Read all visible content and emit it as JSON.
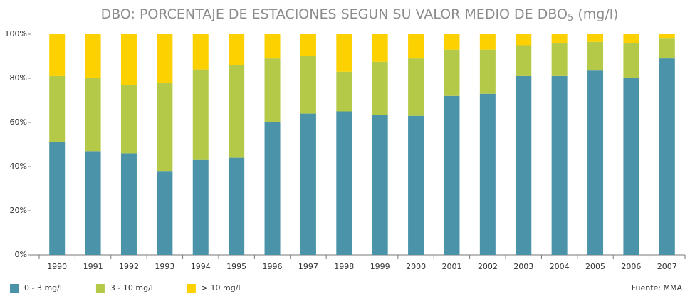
{
  "chart_data": {
    "type": "stacked_bar",
    "title": "DBO: PORCENTAJE DE ESTACIONES SEGUN SU VALOR MEDIO DE DBO",
    "title_subscript": "5",
    "title_suffix": " (mg/l)",
    "source": "Fuente: MMA",
    "categories": [
      "1990",
      "1991",
      "1992",
      "1993",
      "1994",
      "1995",
      "1996",
      "1997",
      "1998",
      "1999",
      "2000",
      "2001",
      "2002",
      "2003",
      "2004",
      "2005",
      "2006",
      "2007"
    ],
    "series": [
      {
        "name": "0 - 3 mg/l",
        "color": "#4a93a8",
        "values": [
          51,
          47,
          46,
          38,
          43,
          44,
          60,
          64,
          65,
          63.5,
          63,
          72,
          73,
          81,
          81,
          83.5,
          80,
          89
        ]
      },
      {
        "name": "3 - 10 mg/l",
        "color": "#b5c948",
        "values": [
          30,
          33,
          31,
          40,
          41,
          42,
          29,
          26,
          18,
          24,
          26,
          21,
          20,
          14,
          15,
          13,
          16,
          9
        ]
      },
      {
        "name": "> 10 mg/l",
        "color": "#fdd100",
        "values": [
          19,
          20,
          23,
          22,
          16,
          14,
          11,
          10,
          17,
          12.5,
          11,
          7,
          7,
          5,
          4,
          3.5,
          4,
          2
        ]
      }
    ],
    "ylim": [
      0,
      100
    ],
    "yticks": [
      {
        "value": 0,
        "label": "0%"
      },
      {
        "value": 20,
        "label": "20%"
      },
      {
        "value": 40,
        "label": "40%"
      },
      {
        "value": 60,
        "label": "60%"
      },
      {
        "value": 80,
        "label": "80%"
      },
      {
        "value": 100,
        "label": "100%"
      }
    ],
    "legend": "bottom-left"
  }
}
